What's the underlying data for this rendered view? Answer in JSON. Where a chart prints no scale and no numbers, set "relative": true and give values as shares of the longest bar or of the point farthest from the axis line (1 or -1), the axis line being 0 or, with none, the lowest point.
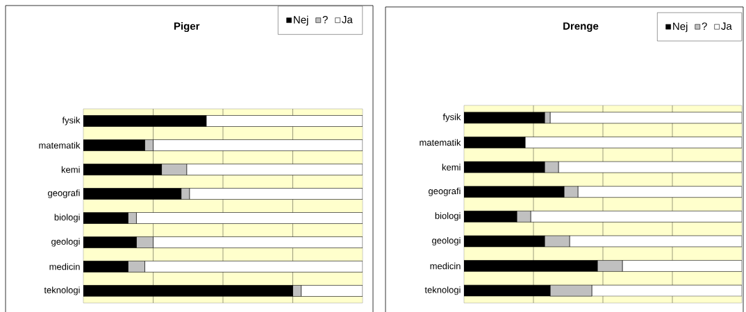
{
  "chart_data": [
    {
      "type": "bar",
      "orientation": "horizontal",
      "stacked": true,
      "relative": true,
      "title": "Piger",
      "categories": [
        "fysik",
        "matematik",
        "kemi",
        "geografi",
        "biologi",
        "geologi",
        "medicin",
        "teknologi"
      ],
      "series": [
        {
          "name": "Nej",
          "color": "#000000",
          "values": [
            0.44,
            0.22,
            0.28,
            0.35,
            0.16,
            0.19,
            0.16,
            0.75
          ]
        },
        {
          "name": "?",
          "color": "#c0c0c0",
          "values": [
            0,
            0.03,
            0.09,
            0.03,
            0.03,
            0.06,
            0.06,
            0.03
          ]
        },
        {
          "name": "Ja",
          "color": "#ffffff",
          "values": [
            0.56,
            0.75,
            0.63,
            0.62,
            0.81,
            0.75,
            0.78,
            0.22
          ]
        }
      ],
      "grid": "x",
      "legend": "top right"
    },
    {
      "type": "bar",
      "orientation": "horizontal",
      "stacked": true,
      "relative": true,
      "title": "Drenge",
      "categories": [
        "fysik",
        "matematik",
        "kemi",
        "geografi",
        "biologi",
        "geologi",
        "medicin",
        "teknologi"
      ],
      "series": [
        {
          "name": "Nej",
          "color": "#000000",
          "values": [
            0.29,
            0.22,
            0.29,
            0.36,
            0.19,
            0.29,
            0.48,
            0.31
          ]
        },
        {
          "name": "?",
          "color": "#c0c0c0",
          "values": [
            0.02,
            0,
            0.05,
            0.05,
            0.05,
            0.09,
            0.09,
            0.15
          ]
        },
        {
          "name": "Ja",
          "color": "#ffffff",
          "values": [
            0.69,
            0.78,
            0.66,
            0.59,
            0.76,
            0.62,
            0.43,
            0.54
          ]
        }
      ],
      "grid": "x",
      "legend": "top right"
    }
  ]
}
